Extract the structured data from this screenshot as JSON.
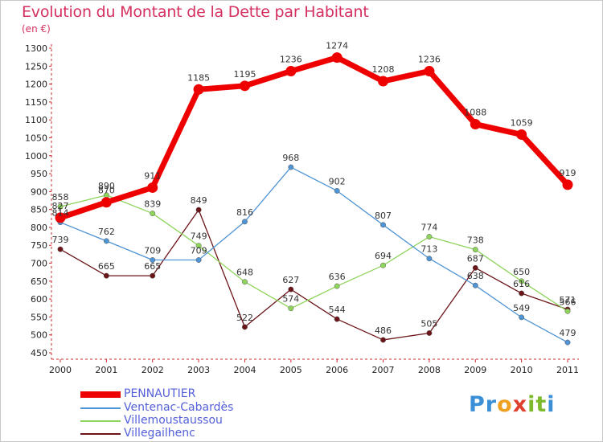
{
  "title": "Evolution du Montant de la Dette par Habitant",
  "unit_label": "(en €)",
  "logo": {
    "letters": [
      "P",
      "r",
      "o",
      "x",
      "i",
      "t",
      "i"
    ],
    "colors": [
      "#3a8fd6",
      "#3a8fd6",
      "#f0a020",
      "#e04030",
      "#7dbb2c",
      "#7dbb2c",
      "#3a8fd6"
    ]
  },
  "chart_data": {
    "type": "line",
    "title": "Evolution du Montant de la Dette par Habitant",
    "ylabel": "(en €)",
    "xlabel": "",
    "x": [
      "2000",
      "2001",
      "2002",
      "2003",
      "2004",
      "2005",
      "2006",
      "2007",
      "2008",
      "2009",
      "2010",
      "2011"
    ],
    "ylim": [
      450,
      1300
    ],
    "yticks": [
      450,
      500,
      550,
      600,
      650,
      700,
      750,
      800,
      850,
      900,
      950,
      1000,
      1050,
      1100,
      1150,
      1200,
      1250,
      1300
    ],
    "grid": false,
    "legend_position": "bottom-left",
    "series": [
      {
        "name": "PENNAUTIER",
        "color": "#ee0000",
        "values": [
          827,
          870,
          911,
          1185,
          1195,
          1236,
          1274,
          1208,
          1236,
          1088,
          1059,
          919
        ]
      },
      {
        "name": "Ventenac-Cabardès",
        "color": "#4f94d4",
        "values": [
          814,
          762,
          709,
          709,
          816,
          968,
          902,
          807,
          713,
          638,
          549,
          479
        ]
      },
      {
        "name": "Villemoustaussou",
        "color": "#8fd45c",
        "values": [
          858,
          890,
          839,
          749,
          648,
          574,
          636,
          694,
          774,
          738,
          650,
          566
        ]
      },
      {
        "name": "Villegailhenc",
        "color": "#6b1418",
        "values": [
          739,
          665,
          665,
          849,
          522,
          627,
          544,
          486,
          505,
          687,
          616,
          571
        ]
      }
    ]
  }
}
